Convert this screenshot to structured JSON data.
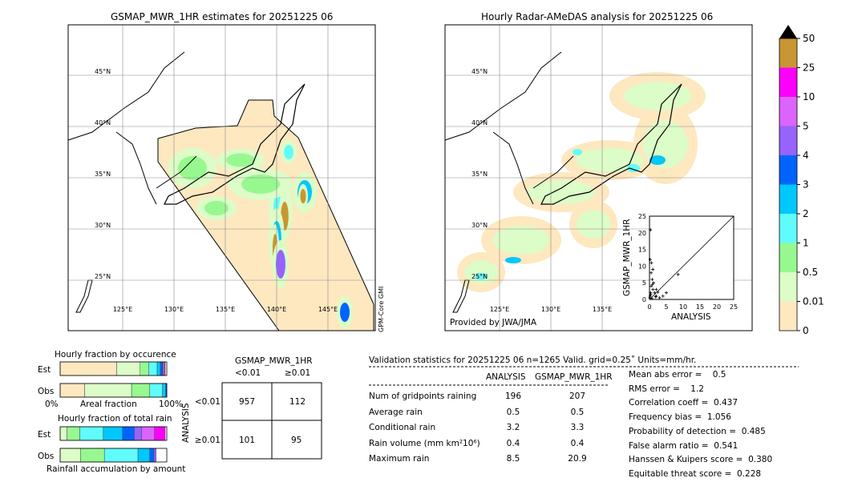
{
  "left_map": {
    "title": "GSMAP_MWR_1HR estimates for 20251225 06",
    "lat_labels": [
      "45°N",
      "40°N",
      "35°N",
      "30°N",
      "25°N"
    ],
    "lon_labels": [
      "125°E",
      "130°E",
      "135°E",
      "140°E",
      "145°E"
    ],
    "sensor_label": "GPM-Core GMI"
  },
  "right_map": {
    "title": "Hourly Radar-AMeDAS analysis for 20251225 06",
    "lat_labels": [
      "45°N",
      "40°N",
      "35°N",
      "30°N",
      "25°N"
    ],
    "lon_labels": [
      "125°E",
      "130°E",
      "135°E"
    ],
    "credit": "Provided by JWA/JMA"
  },
  "scatter": {
    "xlabel": "ANALYSIS",
    "ylabel": "GSMAP_MWR_1HR",
    "ticks": [
      "0",
      "5",
      "10",
      "15",
      "20",
      "25"
    ],
    "range": [
      0,
      25
    ]
  },
  "colorbar": {
    "labels": [
      "0",
      "0.01",
      "0.5",
      "1",
      "2",
      "3",
      "4",
      "5",
      "10",
      "25",
      "50"
    ],
    "colors": [
      "#fee8c0",
      "#dcfcc8",
      "#98f890",
      "#60fcfc",
      "#00c8fc",
      "#0064fc",
      "#9664fc",
      "#dc64fc",
      "#fc00fc",
      "#c89632"
    ],
    "extend_color": "#000000"
  },
  "occurrence": {
    "title": "Hourly fraction by occurence",
    "est_label": "Est",
    "obs_label": "Obs",
    "axis_left": "0%",
    "axis_mid": "Areal fraction",
    "axis_right": "100%",
    "est": [
      53,
      22,
      8,
      8,
      3,
      2,
      1,
      1,
      0.5
    ],
    "obs": [
      23,
      44,
      17,
      12,
      3,
      1
    ]
  },
  "total_rain": {
    "title": "Hourly fraction of total rain",
    "est_label": "Est",
    "obs_label": "Obs",
    "footer": "Rainfall accumulation by amount",
    "est": [
      6.5,
      12,
      22,
      18,
      11,
      7,
      12,
      10
    ],
    "obs": [
      19,
      22.5,
      31.5,
      11,
      4,
      2
    ]
  },
  "contingency": {
    "title": "GSMAP_MWR_1HR",
    "col_headers": [
      "<0.01",
      "≥0.01"
    ],
    "row_axis": "ANALYSIS",
    "row_headers": [
      "<0.01",
      "≥0.01"
    ],
    "cells": [
      [
        "957",
        "112"
      ],
      [
        "101",
        "95"
      ]
    ]
  },
  "validation": {
    "header": "Validation statistics for 20251225 06  n=1265 Valid. grid=0.25˚ Units=mm/hr.",
    "col_headers": [
      "ANALYSIS",
      "GSMAP_MWR_1HR"
    ],
    "rows": [
      {
        "label": "Num of gridpoints raining",
        "a": "196",
        "g": "207"
      },
      {
        "label": "Average rain",
        "a": "0.5",
        "g": "0.5"
      },
      {
        "label": "Conditional rain",
        "a": "3.2",
        "g": "3.3"
      },
      {
        "label": "Rain volume (mm km²10⁶)",
        "a": "0.4",
        "g": "0.4"
      },
      {
        "label": "Maximum rain",
        "a": "8.5",
        "g": "20.9"
      }
    ],
    "scores": [
      "Mean abs error =    0.5",
      "RMS error =    1.2",
      "Correlation coeff =  0.437",
      "Frequency bias =  1.056",
      "Probability of detection =  0.485",
      "False alarm ratio =  0.541",
      "Hanssen & Kuipers score =  0.380",
      "Equitable threat score =  0.228"
    ]
  }
}
